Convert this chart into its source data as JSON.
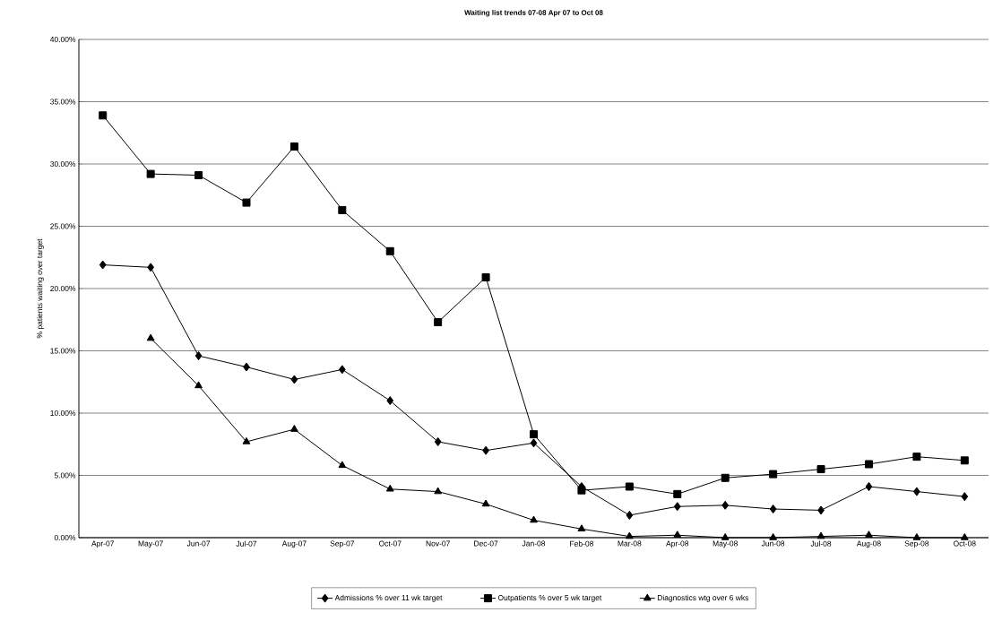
{
  "chart_data": {
    "type": "line",
    "title": "Waiting list trends 07-08 Apr 07 to Oct 08",
    "ylabel": "% patients waiting over target",
    "categories": [
      "Apr-07",
      "May-07",
      "Jun-07",
      "Jul-07",
      "Aug-07",
      "Sep-07",
      "Oct-07",
      "Nov-07",
      "Dec-07",
      "Jan-08",
      "Feb-08",
      "Mar-08",
      "Apr-08",
      "May-08",
      "Jun-08",
      "Jul-08",
      "Aug-08",
      "Sep-08",
      "Oct-08"
    ],
    "series": [
      {
        "name": "Admissions % over 11 wk target",
        "color": "#000000",
        "marker": "diamond",
        "values": [
          21.9,
          21.7,
          14.6,
          13.7,
          12.7,
          13.5,
          11.0,
          7.7,
          7.0,
          7.6,
          4.1,
          1.8,
          2.5,
          2.6,
          2.3,
          2.2,
          4.1,
          3.7,
          3.3
        ]
      },
      {
        "name": "Outpatients % over 5 wk target",
        "color": "#000000",
        "marker": "square",
        "values": [
          33.9,
          29.2,
          29.1,
          26.9,
          31.4,
          26.3,
          23.0,
          17.3,
          20.9,
          8.3,
          3.8,
          4.1,
          3.5,
          4.8,
          5.1,
          5.5,
          5.9,
          6.5,
          6.2
        ]
      },
      {
        "name": "Diagnostics wtg over 6 wks",
        "color": "#000000",
        "marker": "triangle",
        "values": [
          null,
          16.0,
          12.2,
          7.7,
          8.7,
          5.8,
          3.9,
          3.7,
          2.7,
          1.4,
          0.7,
          0.1,
          0.2,
          0.0,
          0.0,
          0.1,
          0.2,
          0.0,
          0.0
        ]
      }
    ],
    "ylim": [
      0,
      40
    ],
    "yticks": [
      {
        "value": 0,
        "label": "0.00%"
      },
      {
        "value": 5,
        "label": "5.00%"
      },
      {
        "value": 10,
        "label": "10.00%"
      },
      {
        "value": 15,
        "label": "15.00%"
      },
      {
        "value": 20,
        "label": "20.00%"
      },
      {
        "value": 25,
        "label": "25.00%"
      },
      {
        "value": 30,
        "label": "30.00%"
      },
      {
        "value": 35,
        "label": "35.00%"
      },
      {
        "value": 40,
        "label": "40.00%"
      }
    ],
    "grid": "y",
    "legend": "bottom",
    "line_style": "solid"
  }
}
